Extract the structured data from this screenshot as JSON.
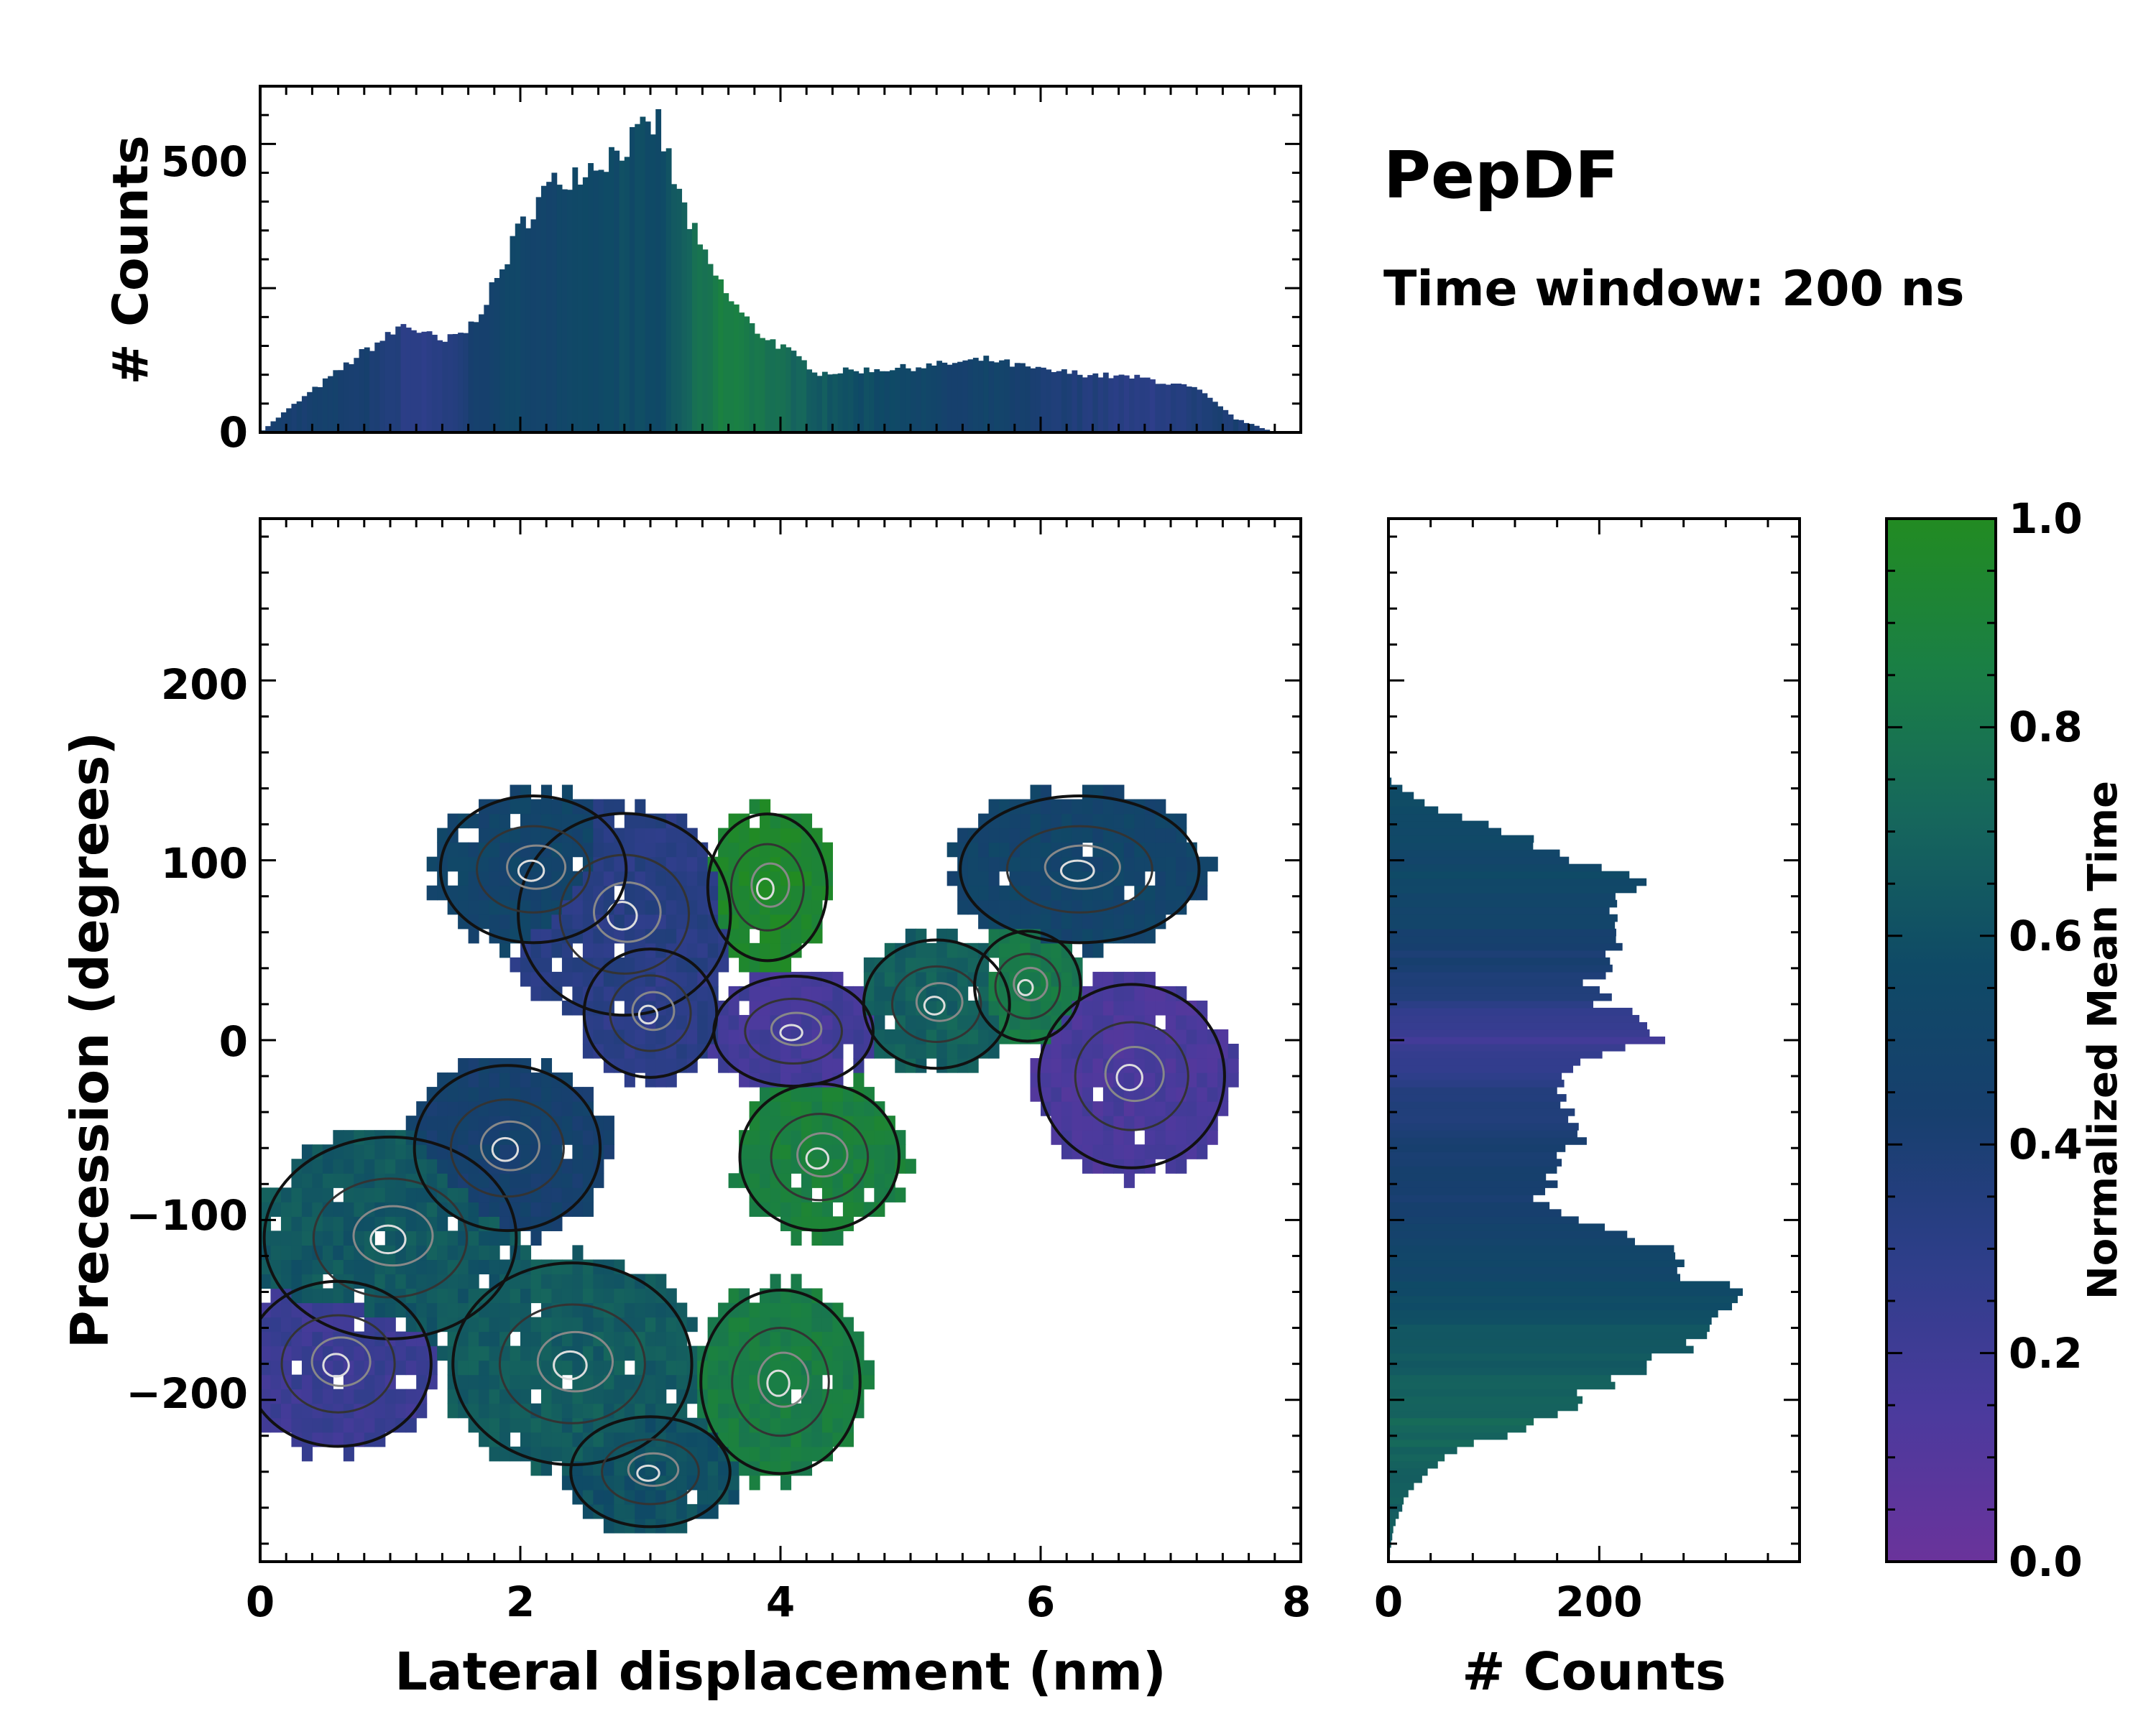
{
  "chart_data": {
    "title": "PepDF",
    "subtitle": "Time window: 200 ns",
    "colormap": {
      "label": "Normalized Mean Time",
      "range": [
        0.0,
        1.0
      ],
      "ticks": [
        "0.0",
        "0.2",
        "0.4",
        "0.6",
        "0.8",
        "1.0"
      ],
      "stops": [
        "#6a339b",
        "#4b3a9d",
        "#2e3e8a",
        "#173f6e",
        "#0f4a66",
        "#16675c",
        "#1a7f45",
        "#228b22"
      ]
    },
    "top_histogram": {
      "type": "bar",
      "ylabel": "# Counts",
      "xlim": [
        0,
        8
      ],
      "ylim": [
        0,
        640
      ],
      "yticks": [
        "0",
        "500"
      ],
      "bin_width": 0.04,
      "knots_x": [
        0,
        0.2,
        0.5,
        0.8,
        1.0,
        1.1,
        1.25,
        1.4,
        1.6,
        1.8,
        2.0,
        2.2,
        2.4,
        2.6,
        2.8,
        3.0,
        3.05,
        3.2,
        3.4,
        3.6,
        3.8,
        4.0,
        4.3,
        4.6,
        5.0,
        5.4,
        5.6,
        6.0,
        6.5,
        6.8,
        7.2,
        7.5,
        7.8
      ],
      "knots_y": [
        0,
        40,
        95,
        150,
        180,
        200,
        185,
        165,
        190,
        270,
        380,
        450,
        480,
        500,
        530,
        560,
        580,
        450,
        330,
        250,
        190,
        160,
        110,
        115,
        120,
        130,
        135,
        115,
        105,
        100,
        80,
        25,
        0
      ],
      "knots_c": [
        0.42,
        0.42,
        0.45,
        0.42,
        0.38,
        0.32,
        0.3,
        0.32,
        0.4,
        0.5,
        0.52,
        0.5,
        0.52,
        0.55,
        0.58,
        0.56,
        0.55,
        0.65,
        0.78,
        0.88,
        0.82,
        0.75,
        0.66,
        0.58,
        0.55,
        0.42,
        0.5,
        0.4,
        0.35,
        0.3,
        0.38,
        0.4,
        0.4
      ]
    },
    "main": {
      "type": "heatmap",
      "xlabel": "Lateral displacement (nm)",
      "ylabel": "Precession (degrees)",
      "xlim": [
        0,
        8
      ],
      "ylim": [
        -290,
        290
      ],
      "xticks": [
        "0",
        "2",
        "4",
        "6",
        "8"
      ],
      "yticks": [
        "−200",
        "−100",
        "0",
        "100",
        "200"
      ],
      "grid": false,
      "contours": "black/grey density contours",
      "regions": [
        {
          "center": [
            1.0,
            -110
          ],
          "radius": [
            0.95,
            55
          ],
          "value": 0.64
        },
        {
          "center": [
            0.6,
            -180
          ],
          "radius": [
            0.7,
            45
          ],
          "value": 0.22
        },
        {
          "center": [
            2.4,
            -180
          ],
          "radius": [
            0.9,
            55
          ],
          "value": 0.66
        },
        {
          "center": [
            1.9,
            -60
          ],
          "radius": [
            0.7,
            45
          ],
          "value": 0.45
        },
        {
          "center": [
            2.8,
            70
          ],
          "radius": [
            0.8,
            55
          ],
          "value": 0.32
        },
        {
          "center": [
            2.1,
            95
          ],
          "radius": [
            0.7,
            40
          ],
          "value": 0.5
        },
        {
          "center": [
            3.0,
            15
          ],
          "radius": [
            0.5,
            35
          ],
          "value": 0.3
        },
        {
          "center": [
            3.9,
            85
          ],
          "radius": [
            0.45,
            40
          ],
          "value": 0.95
        },
        {
          "center": [
            4.1,
            5
          ],
          "radius": [
            0.6,
            30
          ],
          "value": 0.18
        },
        {
          "center": [
            4.3,
            -65
          ],
          "radius": [
            0.6,
            40
          ],
          "value": 0.88
        },
        {
          "center": [
            5.2,
            20
          ],
          "radius": [
            0.55,
            35
          ],
          "value": 0.68
        },
        {
          "center": [
            5.9,
            30
          ],
          "radius": [
            0.4,
            30
          ],
          "value": 0.82
        },
        {
          "center": [
            6.3,
            95
          ],
          "radius": [
            0.9,
            40
          ],
          "value": 0.5
        },
        {
          "center": [
            6.7,
            -20
          ],
          "radius": [
            0.7,
            50
          ],
          "value": 0.15
        },
        {
          "center": [
            4.0,
            -190
          ],
          "radius": [
            0.6,
            50
          ],
          "value": 0.85
        },
        {
          "center": [
            3.0,
            -240
          ],
          "radius": [
            0.6,
            30
          ],
          "value": 0.6
        }
      ]
    },
    "right_histogram": {
      "type": "bar",
      "orientation": "horizontal",
      "xlabel": "# Counts",
      "xlim": [
        0,
        390
      ],
      "xticks": [
        "0",
        "200"
      ],
      "bin_width": 4,
      "knots_y": [
        -290,
        -270,
        -250,
        -230,
        -215,
        -200,
        -185,
        -170,
        -150,
        -140,
        -125,
        -110,
        -100,
        -90,
        -70,
        -50,
        -30,
        -10,
        0,
        10,
        30,
        50,
        70,
        90,
        100,
        115,
        130,
        145
      ],
      "knots_x": [
        0,
        5,
        20,
        60,
        130,
        180,
        230,
        280,
        305,
        320,
        280,
        240,
        180,
        140,
        160,
        185,
        170,
        180,
        255,
        225,
        190,
        215,
        205,
        230,
        180,
        120,
        40,
        0
      ],
      "knots_c": [
        0.65,
        0.65,
        0.68,
        0.7,
        0.72,
        0.7,
        0.66,
        0.62,
        0.6,
        0.56,
        0.52,
        0.48,
        0.46,
        0.42,
        0.44,
        0.4,
        0.35,
        0.25,
        0.2,
        0.25,
        0.38,
        0.42,
        0.5,
        0.55,
        0.52,
        0.55,
        0.58,
        0.55
      ]
    }
  }
}
